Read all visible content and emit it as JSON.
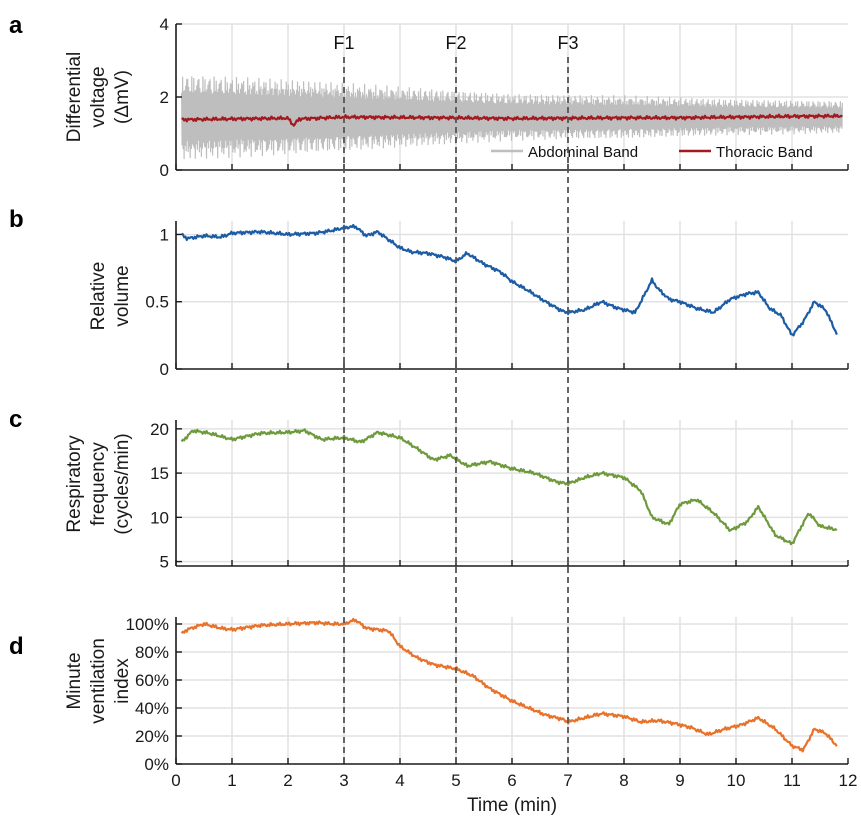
{
  "chart_data": {
    "xlabel": "Time (min)",
    "xlim": [
      0,
      12
    ],
    "xticks": [
      "0",
      "1",
      "2",
      "3",
      "4",
      "5",
      "6",
      "7",
      "8",
      "9",
      "10",
      "11",
      "12"
    ],
    "grid": true,
    "markers": [
      {
        "label": "F1",
        "x": 3
      },
      {
        "label": "F2",
        "x": 5
      },
      {
        "label": "F3",
        "x": 7
      }
    ],
    "panels": [
      {
        "letter": "a",
        "type": "line",
        "ylabel": [
          "Differential",
          "voltage",
          "(ΔmV)"
        ],
        "ylim": [
          0,
          4
        ],
        "yticks": [
          {
            "v": 0,
            "t": "0"
          },
          {
            "v": 2,
            "t": "2"
          },
          {
            "v": 4,
            "t": "4"
          }
        ],
        "legend_position": "bottom-right",
        "series": [
          {
            "name": "Abdominal Band",
            "color": "#bebebe",
            "type": "oscillation",
            "mean": 1.45,
            "x": [
              0.1,
              11.9
            ],
            "amplitude_x": [
              0.1,
              2,
              4,
              6,
              8,
              10,
              11.9
            ],
            "amplitude": [
              1.2,
              1.05,
              0.85,
              0.65,
              0.6,
              0.5,
              0.45
            ]
          },
          {
            "name": "Thoracic Band",
            "color": "#a3191f",
            "type": "line",
            "x": [
              0.1,
              1,
              2,
              2.1,
              2.2,
              3,
              4,
              5,
              6,
              7,
              8,
              9,
              10,
              11,
              11.9
            ],
            "y": [
              1.38,
              1.4,
              1.42,
              1.22,
              1.4,
              1.45,
              1.44,
              1.43,
              1.41,
              1.42,
              1.43,
              1.43,
              1.45,
              1.47,
              1.48
            ]
          }
        ]
      },
      {
        "letter": "b",
        "type": "line",
        "ylabel": [
          "Relative",
          "volume"
        ],
        "ylim": [
          0,
          1.1
        ],
        "yticks": [
          {
            "v": 0,
            "t": "0"
          },
          {
            "v": 0.5,
            "t": "0.5"
          },
          {
            "v": 1,
            "t": "1"
          }
        ],
        "series": [
          {
            "color": "#1c5ca5",
            "x": [
              0.1,
              0.2,
              0.5,
              0.8,
              1.0,
              1.5,
              2.0,
              2.5,
              2.8,
              3.0,
              3.2,
              3.4,
              3.6,
              3.8,
              4.0,
              4.2,
              4.5,
              4.8,
              5.0,
              5.2,
              5.5,
              5.8,
              6.0,
              6.3,
              6.6,
              6.9,
              7.0,
              7.3,
              7.6,
              7.9,
              8.2,
              8.5,
              8.6,
              8.8,
              9.0,
              9.3,
              9.6,
              9.9,
              10.2,
              10.4,
              10.6,
              10.8,
              11.0,
              11.2,
              11.4,
              11.6,
              11.8
            ],
            "y": [
              1.0,
              0.97,
              0.99,
              0.98,
              1.01,
              1.02,
              1.0,
              1.01,
              1.03,
              1.05,
              1.06,
              0.99,
              1.02,
              0.96,
              0.9,
              0.87,
              0.86,
              0.83,
              0.8,
              0.86,
              0.78,
              0.72,
              0.65,
              0.58,
              0.5,
              0.43,
              0.42,
              0.44,
              0.5,
              0.45,
              0.42,
              0.66,
              0.6,
              0.52,
              0.5,
              0.45,
              0.42,
              0.52,
              0.56,
              0.57,
              0.45,
              0.4,
              0.25,
              0.35,
              0.5,
              0.44,
              0.26
            ]
          }
        ]
      },
      {
        "letter": "c",
        "type": "line",
        "ylabel": [
          "Respiratory",
          "frequency",
          "(cycles/min)"
        ],
        "ylim": [
          4.5,
          21
        ],
        "yticks": [
          {
            "v": 5,
            "t": "5"
          },
          {
            "v": 10,
            "t": "10"
          },
          {
            "v": 15,
            "t": "15"
          },
          {
            "v": 20,
            "t": "20"
          }
        ],
        "series": [
          {
            "color": "#6e9a3c",
            "x": [
              0.1,
              0.3,
              0.6,
              1.0,
              1.5,
              2.0,
              2.3,
              2.6,
              3.0,
              3.3,
              3.6,
              4.0,
              4.3,
              4.6,
              4.9,
              5.2,
              5.6,
              6.0,
              6.4,
              6.8,
              7.0,
              7.3,
              7.6,
              8.0,
              8.3,
              8.5,
              8.8,
              9.0,
              9.3,
              9.6,
              9.9,
              10.2,
              10.4,
              10.7,
              11.0,
              11.3,
              11.5,
              11.8
            ],
            "y": [
              18.5,
              19.8,
              19.5,
              18.8,
              19.5,
              19.6,
              19.8,
              18.8,
              19.0,
              18.5,
              19.6,
              19.0,
              17.8,
              16.5,
              17.0,
              15.8,
              16.3,
              15.5,
              15.0,
              14.0,
              13.8,
              14.5,
              15.0,
              14.5,
              13.0,
              10.0,
              9.2,
              11.5,
              12.0,
              10.5,
              8.5,
              9.5,
              11.2,
              8.0,
              7.0,
              10.5,
              9.0,
              8.6
            ]
          }
        ]
      },
      {
        "letter": "d",
        "type": "line",
        "ylabel": [
          "Minute",
          "ventilation",
          "index"
        ],
        "ylim": [
          0,
          105
        ],
        "yticks": [
          {
            "v": 0,
            "t": "0%"
          },
          {
            "v": 20,
            "t": "20%"
          },
          {
            "v": 40,
            "t": "40%"
          },
          {
            "v": 60,
            "t": "60%"
          },
          {
            "v": 80,
            "t": "80%"
          },
          {
            "v": 100,
            "t": "100%"
          }
        ],
        "series": [
          {
            "color": "#e8722a",
            "x": [
              0.1,
              0.2,
              0.5,
              0.8,
              1.0,
              1.5,
              2.0,
              2.5,
              2.8,
              3.0,
              3.2,
              3.4,
              3.6,
              3.8,
              4.0,
              4.3,
              4.6,
              5.0,
              5.3,
              5.6,
              6.0,
              6.3,
              6.6,
              6.9,
              7.0,
              7.3,
              7.6,
              8.0,
              8.3,
              8.6,
              8.9,
              9.2,
              9.5,
              9.8,
              10.1,
              10.4,
              10.7,
              11.0,
              11.2,
              11.4,
              11.6,
              11.8
            ],
            "y": [
              93,
              96,
              100,
              97,
              96,
              99,
              100,
              101,
              100,
              100,
              103,
              97,
              96,
              95,
              84,
              76,
              71,
              68,
              63,
              54,
              45,
              40,
              35,
              32,
              30,
              33,
              36,
              34,
              30,
              31,
              29,
              26,
              21,
              25,
              28,
              33,
              25,
              13,
              10,
              25,
              22,
              13
            ]
          }
        ]
      }
    ]
  }
}
